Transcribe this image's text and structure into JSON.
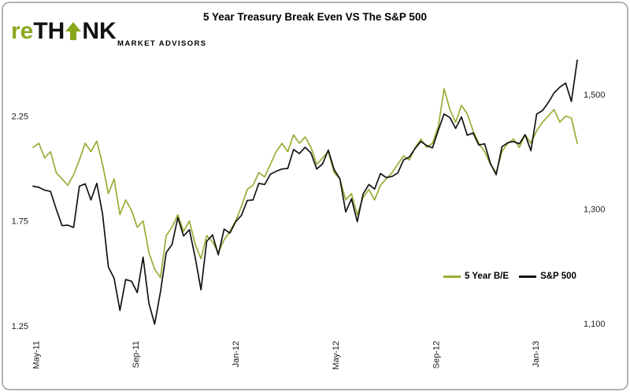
{
  "logo": {
    "re": "re",
    "th": "TH",
    "nk": "NK",
    "tagline": "MARKET ADVISORS"
  },
  "title": "5 Year Treasury Break Even VS The S&P 500",
  "colors": {
    "brand_green": "#8AA81E",
    "breakeven_line": "#9AAC35",
    "sp500_line": "#131313",
    "frame_border": "#b3b3b3"
  },
  "legend": {
    "breakeven_label": "5 Year B/E",
    "sp500_label": "S&P 500"
  },
  "chart_data": {
    "type": "line",
    "title": "5 Year Treasury Break Even VS The S&P 500",
    "grid": false,
    "legend_position": "inside-bottom-right",
    "x_ticks": [
      {
        "label": "May-11",
        "pos": 0.005
      },
      {
        "label": "Sep-11",
        "pos": 0.188
      },
      {
        "label": "Jan-12",
        "pos": 0.372
      },
      {
        "label": "May-12",
        "pos": 0.556
      },
      {
        "label": "Sep-12",
        "pos": 0.74
      },
      {
        "label": "Jan-13",
        "pos": 0.923
      }
    ],
    "left_axis": {
      "ticks": [
        "2.25",
        "1.75",
        "1.25"
      ],
      "tick_values": [
        2.25,
        1.75,
        1.25
      ],
      "range": [
        1.19,
        2.54
      ]
    },
    "right_axis": {
      "ticks": [
        "1,500",
        "1,300",
        "1,100"
      ],
      "tick_values": [
        1500,
        1300,
        1100
      ],
      "range": [
        1074,
        1569
      ]
    },
    "series": [
      {
        "name": "5 Year B/E",
        "axis": "left",
        "color": "#9AAC35",
        "data_name": "breakeven-line",
        "values": [
          2.1,
          2.12,
          2.05,
          2.08,
          1.98,
          1.95,
          1.92,
          1.97,
          2.04,
          2.12,
          2.08,
          2.13,
          2.02,
          1.88,
          1.95,
          1.78,
          1.85,
          1.8,
          1.72,
          1.75,
          1.6,
          1.52,
          1.48,
          1.68,
          1.72,
          1.78,
          1.7,
          1.75,
          1.64,
          1.57,
          1.68,
          1.65,
          1.6,
          1.66,
          1.7,
          1.75,
          1.82,
          1.9,
          1.92,
          1.98,
          1.96,
          2.02,
          2.08,
          2.12,
          2.08,
          2.16,
          2.12,
          2.15,
          2.1,
          2.02,
          2.05,
          2.08,
          1.98,
          1.95,
          1.85,
          1.88,
          1.78,
          1.86,
          1.9,
          1.85,
          1.92,
          1.95,
          1.98,
          2.02,
          2.06,
          2.04,
          2.1,
          2.14,
          2.1,
          2.12,
          2.2,
          2.38,
          2.28,
          2.22,
          2.3,
          2.26,
          2.18,
          2.12,
          2.08,
          2.02,
          1.98,
          2.08,
          2.12,
          2.14,
          2.1,
          2.16,
          2.12,
          2.18,
          2.22,
          2.25,
          2.28,
          2.22,
          2.25,
          2.24,
          2.12
        ]
      },
      {
        "name": "S&P 500",
        "axis": "right",
        "color": "#131313",
        "data_name": "sp500-line",
        "values": [
          1340,
          1338,
          1333,
          1331,
          1300,
          1271,
          1272,
          1268,
          1340,
          1344,
          1316,
          1345,
          1292,
          1199,
          1179,
          1123,
          1177,
          1174,
          1154,
          1216,
          1136,
          1099,
          1155,
          1224,
          1238,
          1285,
          1253,
          1264,
          1216,
          1159,
          1244,
          1255,
          1220,
          1265,
          1258,
          1278,
          1289,
          1315,
          1316,
          1345,
          1343,
          1361,
          1366,
          1370,
          1371,
          1404,
          1397,
          1408,
          1398,
          1370,
          1379,
          1403,
          1369,
          1353,
          1295,
          1318,
          1278,
          1326,
          1343,
          1335,
          1362,
          1355,
          1357,
          1363,
          1386,
          1391,
          1406,
          1418,
          1411,
          1407,
          1438,
          1466,
          1460,
          1441,
          1461,
          1429,
          1433,
          1412,
          1414,
          1380,
          1360,
          1409,
          1416,
          1418,
          1414,
          1430,
          1402,
          1466,
          1472,
          1486,
          1503,
          1513,
          1520,
          1488,
          1560
        ]
      }
    ]
  }
}
